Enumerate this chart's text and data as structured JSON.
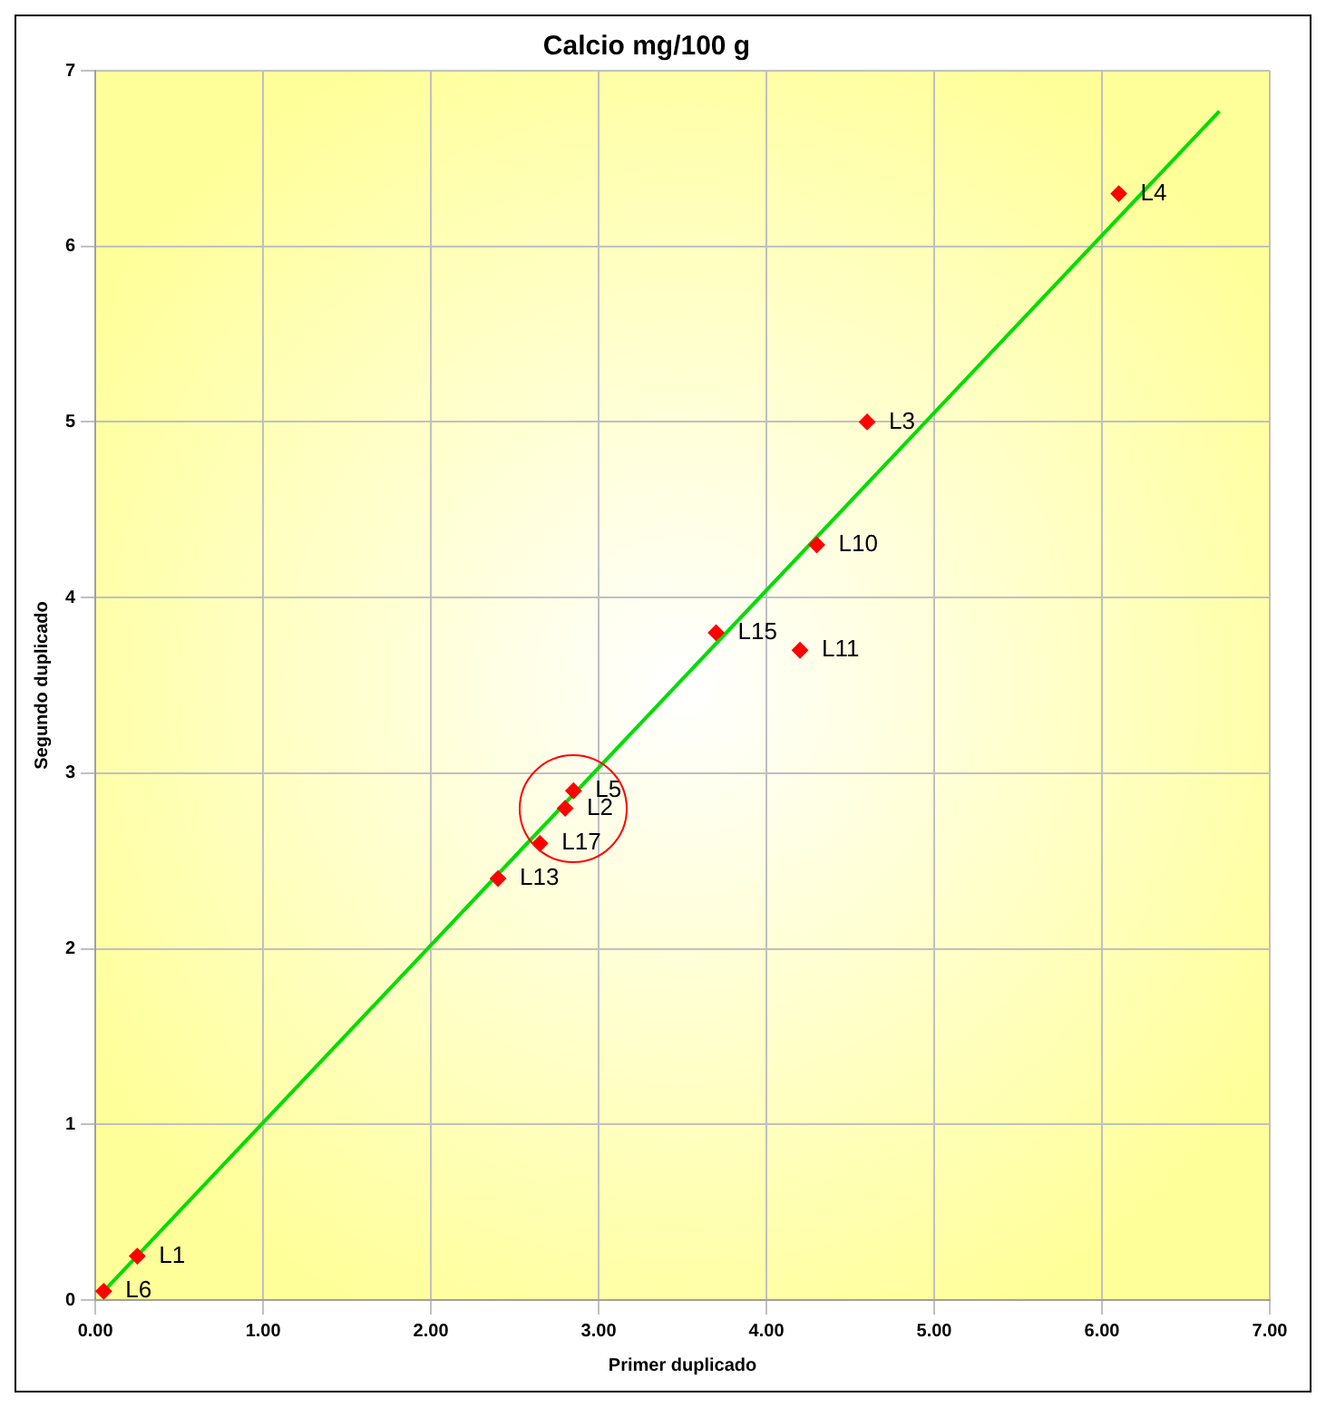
{
  "chart_data": {
    "type": "scatter",
    "title": "Calcio mg/100 g",
    "xlabel": "Primer duplicado",
    "ylabel": "Segundo duplicado",
    "x": [
      6.1,
      4.6,
      4.3,
      3.7,
      4.2,
      2.85,
      2.8,
      2.65,
      2.4,
      0.25,
      0.05
    ],
    "series": [
      {
        "type": "scatter",
        "color": "#ff0000",
        "marker": "diamond",
        "values": [
          6.3,
          5.0,
          4.3,
          3.8,
          3.7,
          2.9,
          2.8,
          2.6,
          2.4,
          0.25,
          0.05
        ]
      },
      {
        "type": "line",
        "color": "#00dd00",
        "marker": "none",
        "line_style": "solid",
        "x": [
          0.05,
          6.7
        ],
        "values": [
          0.05,
          6.77
        ]
      }
    ],
    "xlim": [
      0,
      7
    ],
    "xticks": [
      {
        "value": 0,
        "label": "0.00"
      },
      {
        "value": 1,
        "label": "1.00"
      },
      {
        "value": 2,
        "label": "2.00"
      },
      {
        "value": 3,
        "label": "3.00"
      },
      {
        "value": 4,
        "label": "4.00"
      },
      {
        "value": 5,
        "label": "5.00"
      },
      {
        "value": 6,
        "label": "6.00"
      },
      {
        "value": 7,
        "label": "7.00"
      }
    ],
    "ylim": [
      0,
      7
    ],
    "yticks": [
      0,
      1,
      2,
      3,
      4,
      5,
      6,
      7
    ],
    "grid": true,
    "legend": false,
    "annotations": [
      {
        "text": "L4",
        "x": 6.1,
        "y": 6.3
      },
      {
        "text": "L3",
        "x": 4.6,
        "y": 5.0
      },
      {
        "text": "L10",
        "x": 4.3,
        "y": 4.3
      },
      {
        "text": "L15",
        "x": 3.7,
        "y": 3.8
      },
      {
        "text": "L11",
        "x": 4.2,
        "y": 3.7
      },
      {
        "text": "L5",
        "x": 2.85,
        "y": 2.9
      },
      {
        "text": "L2",
        "x": 2.8,
        "y": 2.8
      },
      {
        "text": "L17",
        "x": 2.65,
        "y": 2.6
      },
      {
        "text": "L13",
        "x": 2.4,
        "y": 2.4
      },
      {
        "text": "L1",
        "x": 0.25,
        "y": 0.25
      },
      {
        "text": "L6",
        "x": 0.05,
        "y": 0.05
      }
    ]
  }
}
